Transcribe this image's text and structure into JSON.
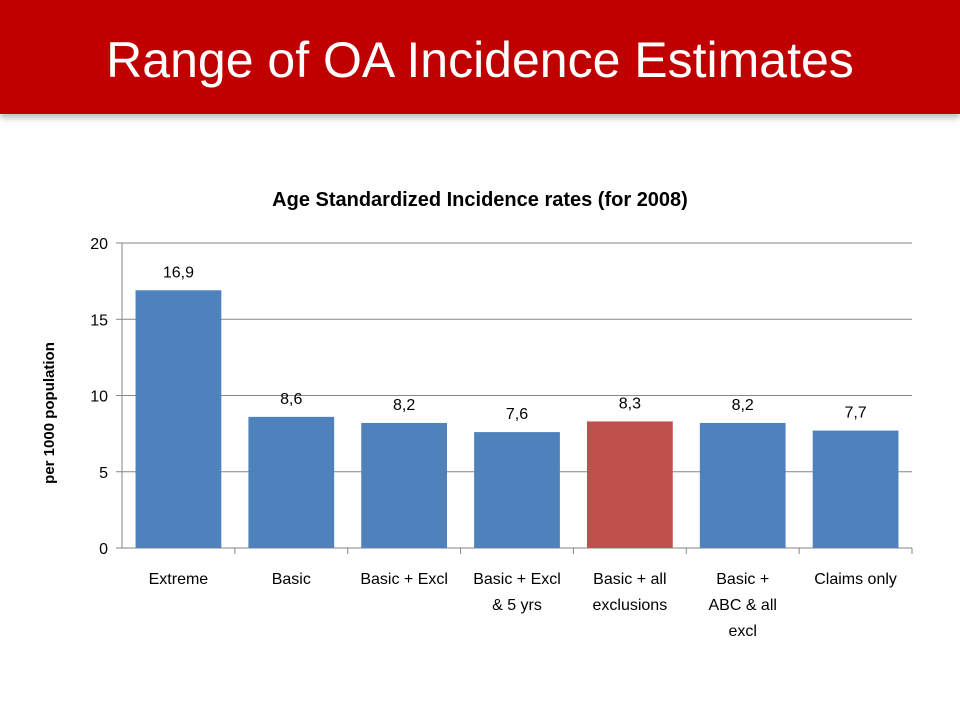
{
  "slide": {
    "title": "Range of OA Incidence Estimates"
  },
  "colors": {
    "banner": "#c00000",
    "bar": "#4f81bd",
    "highlight": "#c0504d",
    "grid": "#868686"
  },
  "chart_data": {
    "type": "bar",
    "title": "Age Standardized Incidence rates (for 2008)",
    "xlabel": "",
    "ylabel": "per 1000 population",
    "ylim": [
      0,
      20
    ],
    "yticks": [
      "0",
      "5",
      "10",
      "15",
      "20"
    ],
    "ytick_values": [
      0,
      5,
      10,
      15,
      20
    ],
    "grid": true,
    "categories": [
      [
        "Extreme"
      ],
      [
        "Basic"
      ],
      [
        "Basic + Excl"
      ],
      [
        "Basic + Excl",
        "& 5 yrs"
      ],
      [
        "Basic + all",
        "exclusions"
      ],
      [
        "Basic +",
        "ABC & all",
        "excl"
      ],
      [
        "Claims only"
      ]
    ],
    "values": [
      16.9,
      8.6,
      8.2,
      7.6,
      8.3,
      8.2,
      7.7
    ],
    "data_labels": [
      "16,9",
      "8,6",
      "8,2",
      "7,6",
      "8,3",
      "8,2",
      "7,7"
    ],
    "highlight_index": 4
  }
}
